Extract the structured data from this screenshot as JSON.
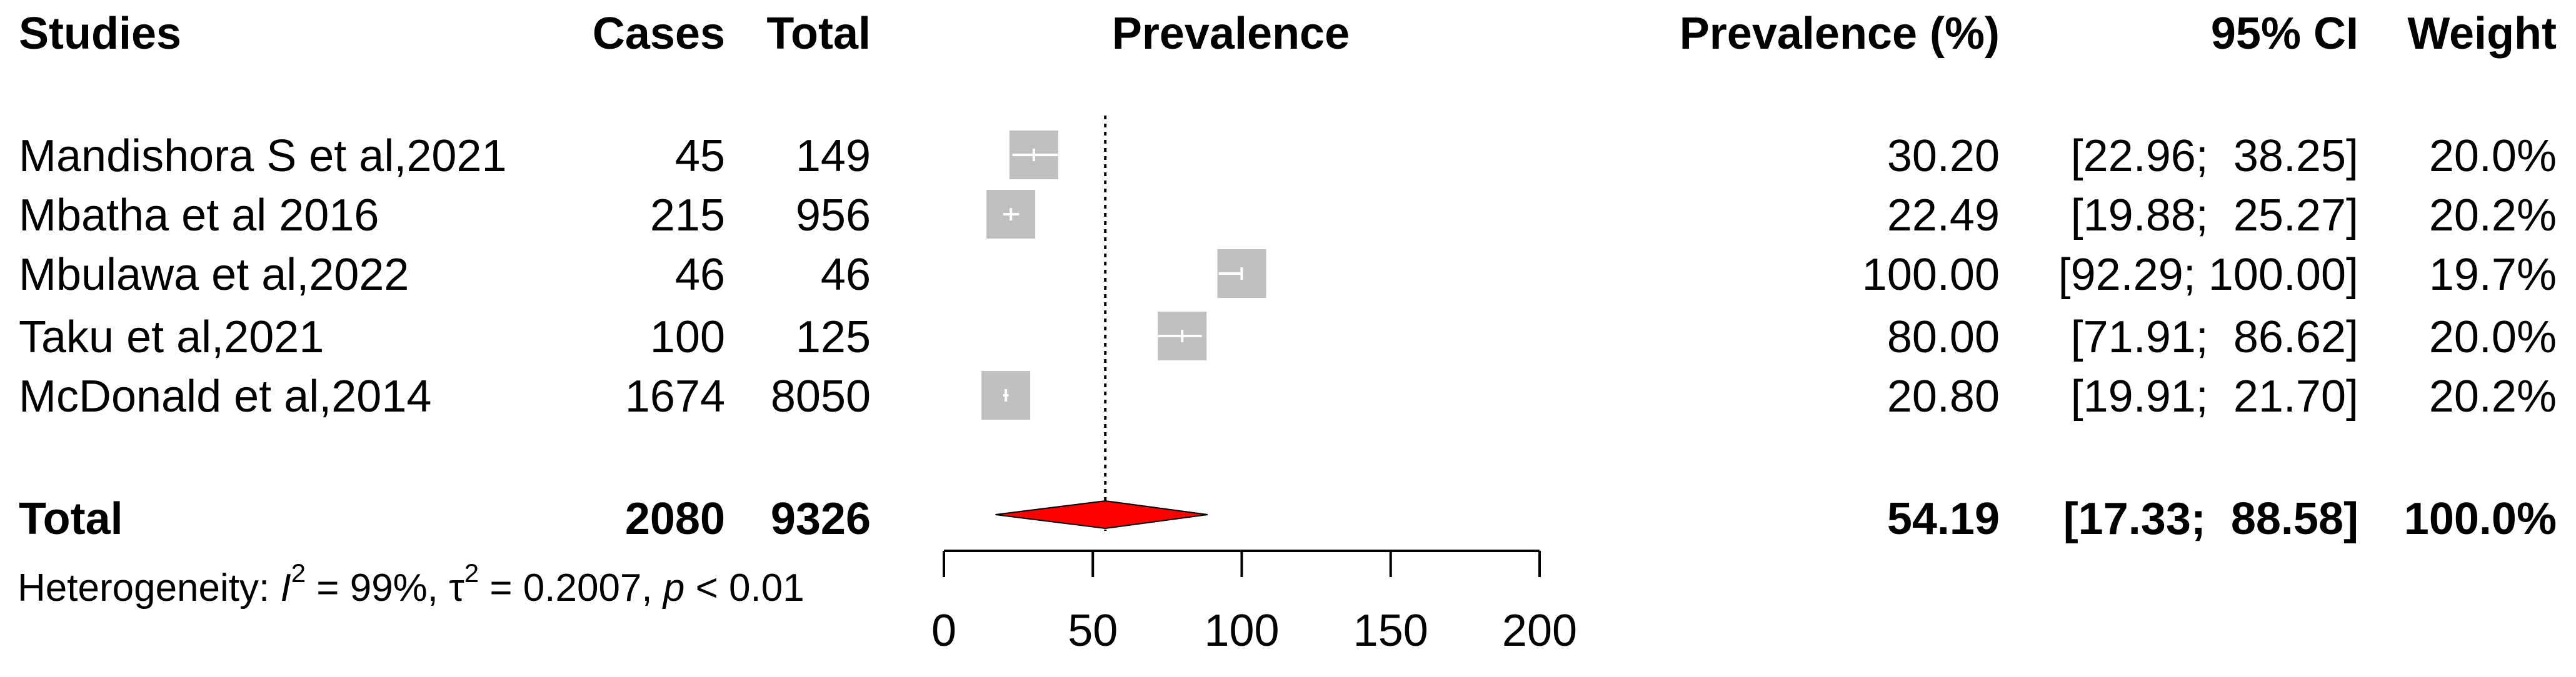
{
  "chart_data": {
    "type": "forest",
    "title": "",
    "columns": {
      "study": "Studies",
      "cases": "Cases",
      "total": "Total",
      "plot": "Prevalence",
      "estimate": "Prevalence (%)",
      "ci": "95% CI",
      "weight": "Weight"
    },
    "studies": [
      {
        "name": "Mandishora S et al,2021",
        "cases": "45",
        "total": "149",
        "estimate": 30.2,
        "lower": 22.96,
        "upper": 38.25,
        "estimate_text": "30.20",
        "ci_text": "[22.96;  38.25]",
        "weight": 20.0,
        "weight_text": "20.0%"
      },
      {
        "name": "Mbatha et al 2016",
        "cases": "215",
        "total": "956",
        "estimate": 22.49,
        "lower": 19.88,
        "upper": 25.27,
        "estimate_text": "22.49",
        "ci_text": "[19.88;  25.27]",
        "weight": 20.2,
        "weight_text": "20.2%"
      },
      {
        "name": "Mbulawa et al,2022",
        "cases": "46",
        "total": "46",
        "estimate": 100.0,
        "lower": 92.29,
        "upper": 100.0,
        "estimate_text": "100.00",
        "ci_text": "[92.29; 100.00]",
        "weight": 19.7,
        "weight_text": "19.7%"
      },
      {
        "name": "Taku et al,2021",
        "cases": "100",
        "total": "125",
        "estimate": 80.0,
        "lower": 71.91,
        "upper": 86.62,
        "estimate_text": "80.00",
        "ci_text": "[71.91;  86.62]",
        "weight": 20.0,
        "weight_text": "20.0%"
      },
      {
        "name": "McDonald et al,2014",
        "cases": "1674",
        "total": "8050",
        "estimate": 20.8,
        "lower": 19.91,
        "upper": 21.7,
        "estimate_text": "20.80",
        "ci_text": "[19.91;  21.70]",
        "weight": 20.2,
        "weight_text": "20.2%"
      }
    ],
    "overall": {
      "name": "Total",
      "cases": "2080",
      "total": "9326",
      "estimate": 54.19,
      "lower": 17.33,
      "upper": 88.58,
      "estimate_text": "54.19",
      "ci_text": "[17.33;  88.58]",
      "weight_text": "100.0%"
    },
    "heterogeneity": {
      "prefix": "Heterogeneity: ",
      "i2_symbol": "I",
      "i2_value": " = 99%, ",
      "tau2_symbol": "τ",
      "tau2_value": " = 0.2007, ",
      "p_symbol": "p",
      "p_value": " < 0.01",
      "exponent": "2"
    },
    "xaxis": {
      "ticks": [
        0,
        50,
        100,
        150,
        200
      ],
      "tick_labels": [
        "0",
        "50",
        "100",
        "150",
        "200"
      ],
      "xlim": [
        0,
        200
      ]
    },
    "reference_line": 54.19,
    "colors": {
      "study_box": "#c0c0c0",
      "ci_light": "#ffffff",
      "ci_dark": "#000000",
      "diamond": "#ff0000",
      "axis": "#000000"
    }
  }
}
